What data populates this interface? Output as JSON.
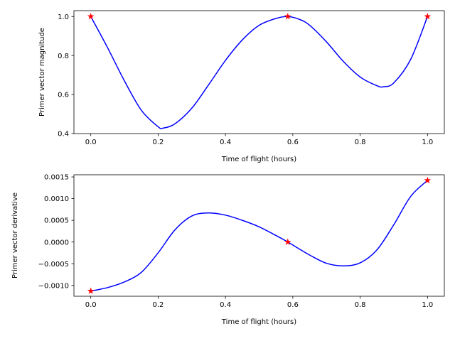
{
  "chart_data": [
    {
      "type": "line",
      "title": "",
      "xlabel": "Time of flight (hours)",
      "ylabel": "Primer vector magnitude",
      "xlim": [
        -0.05,
        1.05
      ],
      "ylim": [
        0.4,
        1.03
      ],
      "xticks": [
        0.0,
        0.2,
        0.4,
        0.6,
        0.8,
        1.0
      ],
      "xtick_labels": [
        "0.0",
        "0.2",
        "0.4",
        "0.6",
        "0.8",
        "1.0"
      ],
      "yticks": [
        0.4,
        0.6,
        0.8,
        1.0
      ],
      "ytick_labels": [
        "0.4",
        "0.6",
        "0.8",
        "1.0"
      ],
      "grid": false,
      "series": [
        {
          "color": "#0000ff",
          "style": "solid",
          "x": [
            0.0,
            0.05,
            0.1,
            0.15,
            0.2,
            0.215,
            0.25,
            0.3,
            0.35,
            0.4,
            0.45,
            0.5,
            0.55,
            0.585,
            0.62,
            0.65,
            0.7,
            0.75,
            0.8,
            0.85,
            0.87,
            0.9,
            0.95,
            1.0
          ],
          "y": [
            1.0,
            0.84,
            0.67,
            0.52,
            0.435,
            0.428,
            0.45,
            0.53,
            0.65,
            0.775,
            0.88,
            0.955,
            0.99,
            1.0,
            0.985,
            0.955,
            0.87,
            0.77,
            0.69,
            0.645,
            0.64,
            0.66,
            0.78,
            1.0
          ]
        },
        {
          "color": "#ff0000",
          "marker": "star",
          "line": "none",
          "x": [
            0.0,
            0.585,
            1.0
          ],
          "y": [
            1.0,
            1.0,
            1.0
          ]
        }
      ]
    },
    {
      "type": "line",
      "title": "",
      "xlabel": "Time of flight (hours)",
      "ylabel": "Primer vector derivative",
      "xlim": [
        -0.05,
        1.05
      ],
      "ylim": [
        -0.00125,
        0.00155
      ],
      "xticks": [
        0.0,
        0.2,
        0.4,
        0.6,
        0.8,
        1.0
      ],
      "xtick_labels": [
        "0.0",
        "0.2",
        "0.4",
        "0.6",
        "0.8",
        "1.0"
      ],
      "yticks": [
        -0.001,
        -0.0005,
        0.0,
        0.0005,
        0.001,
        0.0015
      ],
      "ytick_labels": [
        "−0.0010",
        "−0.0005",
        "0.0000",
        "0.0005",
        "0.0010",
        "0.0015"
      ],
      "grid": false,
      "series": [
        {
          "color": "#0000ff",
          "style": "solid",
          "x": [
            0.0,
            0.05,
            0.1,
            0.15,
            0.2,
            0.25,
            0.3,
            0.35,
            0.4,
            0.45,
            0.5,
            0.55,
            0.585,
            0.65,
            0.7,
            0.75,
            0.8,
            0.85,
            0.9,
            0.95,
            1.0
          ],
          "y": [
            -0.00113,
            -0.00105,
            -0.00092,
            -0.0007,
            -0.00025,
            0.00028,
            0.0006,
            0.00067,
            0.00062,
            0.0005,
            0.00035,
            0.00015,
            0.0,
            -0.0003,
            -0.00049,
            -0.00055,
            -0.00048,
            -0.00018,
            0.0004,
            0.00105,
            0.00142
          ]
        },
        {
          "color": "#ff0000",
          "marker": "star",
          "line": "none",
          "x": [
            0.0,
            0.585,
            1.0
          ],
          "y": [
            -0.00113,
            0.0,
            0.00142
          ]
        }
      ]
    }
  ]
}
